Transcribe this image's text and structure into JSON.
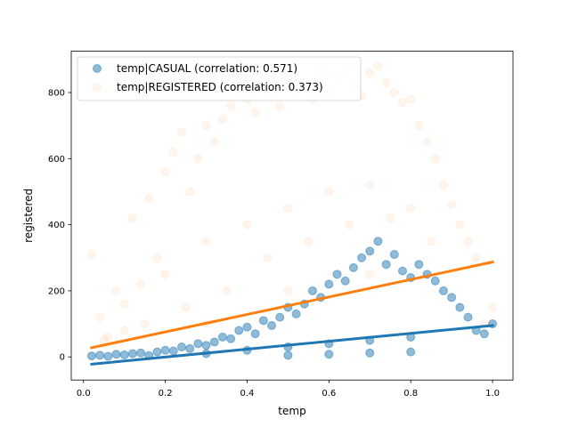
{
  "chart_data": {
    "type": "scatter",
    "xlabel": "temp",
    "ylabel": "registered",
    "xlim": [
      -0.03,
      1.05
    ],
    "ylim": [
      -70,
      925
    ],
    "xticks": [
      0.0,
      0.2,
      0.4,
      0.6,
      0.8,
      1.0
    ],
    "xtick_labels": [
      "0.0",
      "0.2",
      "0.4",
      "0.6",
      "0.8",
      "1.0"
    ],
    "yticks": [
      0,
      200,
      400,
      600,
      800
    ],
    "ytick_labels": [
      "0",
      "200",
      "400",
      "600",
      "800"
    ],
    "grid": false,
    "legend_position": "top-left",
    "series": [
      {
        "name": "temp|CASUAL (correlation: 0.571)",
        "color": "#1f77b4",
        "point_alpha": 0.5,
        "trend_line": {
          "x": [
            0.02,
            1.0
          ],
          "y": [
            -22,
            95
          ]
        },
        "points": [
          [
            0.02,
            3
          ],
          [
            0.04,
            5
          ],
          [
            0.06,
            2
          ],
          [
            0.08,
            8
          ],
          [
            0.1,
            6
          ],
          [
            0.12,
            10
          ],
          [
            0.14,
            12
          ],
          [
            0.16,
            4
          ],
          [
            0.18,
            15
          ],
          [
            0.2,
            20
          ],
          [
            0.22,
            18
          ],
          [
            0.24,
            30
          ],
          [
            0.26,
            25
          ],
          [
            0.28,
            40
          ],
          [
            0.3,
            35
          ],
          [
            0.32,
            45
          ],
          [
            0.34,
            60
          ],
          [
            0.36,
            55
          ],
          [
            0.38,
            80
          ],
          [
            0.4,
            90
          ],
          [
            0.42,
            70
          ],
          [
            0.44,
            110
          ],
          [
            0.46,
            95
          ],
          [
            0.48,
            120
          ],
          [
            0.5,
            150
          ],
          [
            0.52,
            130
          ],
          [
            0.54,
            160
          ],
          [
            0.56,
            200
          ],
          [
            0.58,
            180
          ],
          [
            0.6,
            220
          ],
          [
            0.62,
            250
          ],
          [
            0.64,
            230
          ],
          [
            0.66,
            270
          ],
          [
            0.68,
            300
          ],
          [
            0.7,
            320
          ],
          [
            0.72,
            350
          ],
          [
            0.74,
            280
          ],
          [
            0.76,
            310
          ],
          [
            0.78,
            260
          ],
          [
            0.8,
            240
          ],
          [
            0.82,
            280
          ],
          [
            0.84,
            250
          ],
          [
            0.86,
            230
          ],
          [
            0.88,
            200
          ],
          [
            0.9,
            180
          ],
          [
            0.92,
            150
          ],
          [
            0.94,
            120
          ],
          [
            0.96,
            80
          ],
          [
            0.98,
            70
          ],
          [
            1.0,
            100
          ],
          [
            0.3,
            10
          ],
          [
            0.4,
            20
          ],
          [
            0.5,
            30
          ],
          [
            0.6,
            40
          ],
          [
            0.7,
            50
          ],
          [
            0.8,
            60
          ],
          [
            0.5,
            5
          ],
          [
            0.6,
            8
          ],
          [
            0.7,
            12
          ],
          [
            0.8,
            15
          ]
        ]
      },
      {
        "name": "temp|REGISTERED (correlation: 0.373)",
        "color": "#ff7f0e",
        "point_alpha": 0.08,
        "trend_line": {
          "x": [
            0.02,
            1.0
          ],
          "y": [
            28,
            287
          ]
        },
        "points": [
          [
            0.02,
            310
          ],
          [
            0.04,
            120
          ],
          [
            0.06,
            60
          ],
          [
            0.08,
            200
          ],
          [
            0.1,
            160
          ],
          [
            0.12,
            420
          ],
          [
            0.14,
            220
          ],
          [
            0.16,
            480
          ],
          [
            0.18,
            300
          ],
          [
            0.2,
            560
          ],
          [
            0.22,
            620
          ],
          [
            0.24,
            680
          ],
          [
            0.26,
            500
          ],
          [
            0.28,
            600
          ],
          [
            0.3,
            700
          ],
          [
            0.32,
            650
          ],
          [
            0.34,
            720
          ],
          [
            0.36,
            760
          ],
          [
            0.38,
            800
          ],
          [
            0.4,
            780
          ],
          [
            0.42,
            740
          ],
          [
            0.44,
            820
          ],
          [
            0.46,
            790
          ],
          [
            0.48,
            760
          ],
          [
            0.5,
            840
          ],
          [
            0.52,
            800
          ],
          [
            0.54,
            830
          ],
          [
            0.56,
            780
          ],
          [
            0.58,
            860
          ],
          [
            0.6,
            800
          ],
          [
            0.62,
            850
          ],
          [
            0.64,
            870
          ],
          [
            0.66,
            820
          ],
          [
            0.68,
            790
          ],
          [
            0.7,
            860
          ],
          [
            0.72,
            880
          ],
          [
            0.74,
            830
          ],
          [
            0.76,
            800
          ],
          [
            0.78,
            770
          ],
          [
            0.8,
            780
          ],
          [
            0.82,
            700
          ],
          [
            0.84,
            650
          ],
          [
            0.86,
            600
          ],
          [
            0.88,
            520
          ],
          [
            0.9,
            460
          ],
          [
            0.92,
            400
          ],
          [
            0.94,
            350
          ],
          [
            0.96,
            300
          ],
          [
            0.98,
            100
          ],
          [
            1.0,
            150
          ],
          [
            0.2,
            250
          ],
          [
            0.3,
            350
          ],
          [
            0.4,
            400
          ],
          [
            0.5,
            450
          ],
          [
            0.6,
            500
          ],
          [
            0.7,
            520
          ],
          [
            0.8,
            450
          ],
          [
            0.25,
            150
          ],
          [
            0.35,
            200
          ],
          [
            0.45,
            300
          ],
          [
            0.55,
            350
          ],
          [
            0.65,
            400
          ],
          [
            0.75,
            420
          ],
          [
            0.85,
            350
          ],
          [
            0.15,
            100
          ],
          [
            0.1,
            80
          ],
          [
            0.05,
            50
          ],
          [
            0.3,
            100
          ],
          [
            0.5,
            200
          ],
          [
            0.7,
            250
          ]
        ]
      }
    ]
  }
}
